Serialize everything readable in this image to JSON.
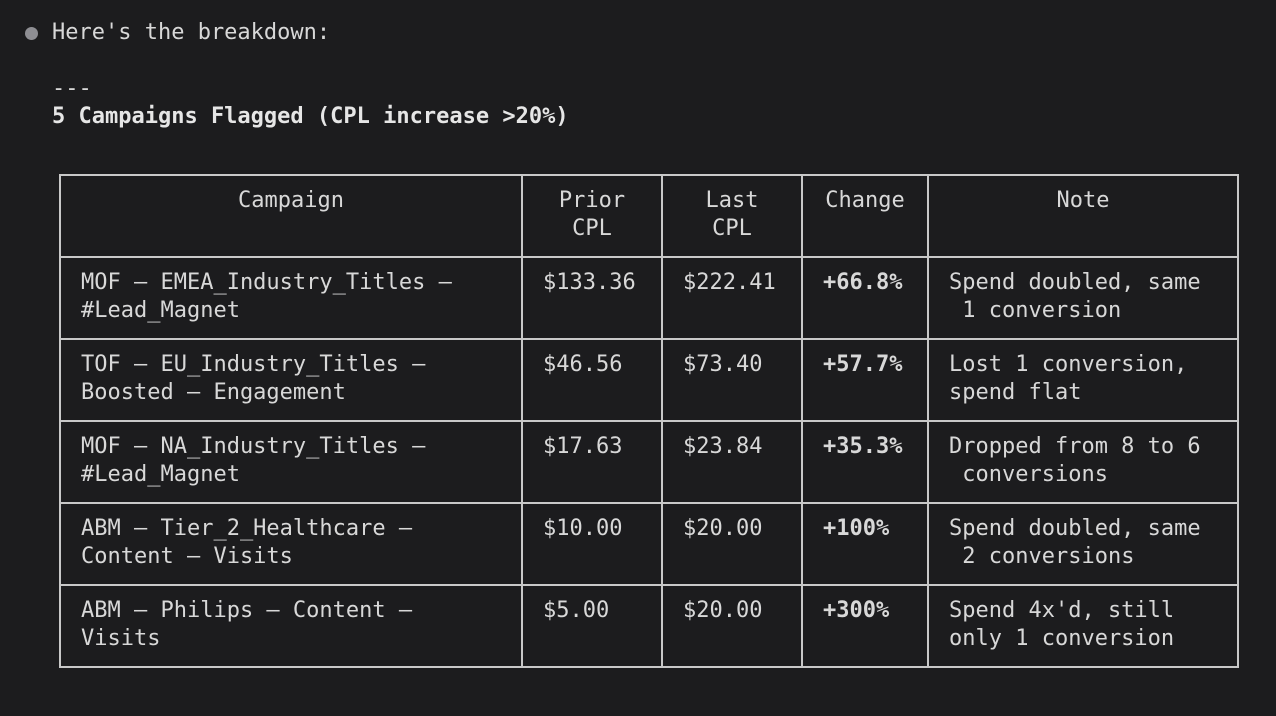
{
  "intro_text": "Here's the breakdown:",
  "separator": "---",
  "heading": "5 Campaigns Flagged (CPL increase >20%)",
  "table": {
    "headers": {
      "campaign": "Campaign",
      "prior": "Prior\nCPL",
      "last": "Last\nCPL",
      "change": "Change",
      "note": "Note"
    },
    "rows": [
      {
        "campaign": "MOF – EMEA_Industry_Titles –\n#Lead_Magnet",
        "prior": "$133.36",
        "last": "$222.41",
        "change": "+66.8%",
        "note": "Spend doubled, same\n 1 conversion"
      },
      {
        "campaign": "TOF – EU_Industry_Titles –\nBoosted – Engagement",
        "prior": "$46.56",
        "last": "$73.40",
        "change": "+57.7%",
        "note": "Lost 1 conversion,\nspend flat"
      },
      {
        "campaign": "MOF – NA_Industry_Titles –\n#Lead_Magnet",
        "prior": "$17.63",
        "last": "$23.84",
        "change": "+35.3%",
        "note": "Dropped from 8 to 6\n conversions"
      },
      {
        "campaign": "ABM – Tier_2_Healthcare –\nContent – Visits",
        "prior": "$10.00",
        "last": "$20.00",
        "change": "+100%",
        "note": "Spend doubled, same\n 2 conversions"
      },
      {
        "campaign": "ABM – Philips – Content –\nVisits",
        "prior": "$5.00",
        "last": "$20.00",
        "change": "+300%",
        "note": "Spend 4x'd, still\nonly 1 conversion"
      }
    ]
  }
}
